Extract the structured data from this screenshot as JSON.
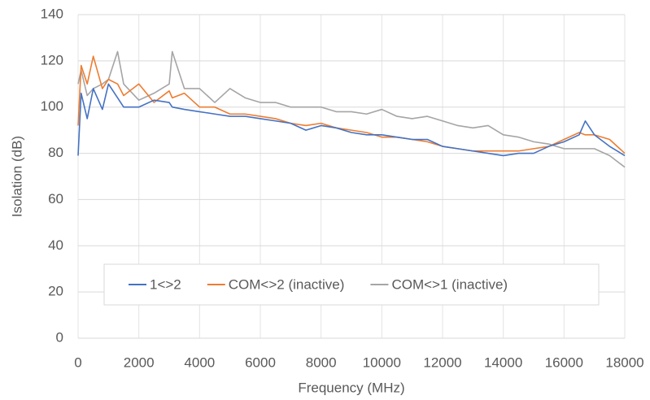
{
  "chart_data": {
    "type": "line",
    "xlabel": "Frequency (MHz)",
    "ylabel": "Isolation (dB)",
    "x": [
      0,
      100,
      300,
      500,
      800,
      1000,
      1300,
      1500,
      2000,
      2500,
      3000,
      3100,
      3500,
      4000,
      4500,
      5000,
      5500,
      6000,
      6500,
      7000,
      7500,
      8000,
      8500,
      9000,
      9500,
      10000,
      10500,
      11000,
      11500,
      12000,
      12500,
      13000,
      13500,
      14000,
      14500,
      15000,
      15500,
      16000,
      16500,
      16700,
      17000,
      17500,
      18000
    ],
    "series": [
      {
        "name": "1<>2",
        "color": "#4472c4",
        "values": [
          79,
          106,
          95,
          108,
          99,
          110,
          104,
          100,
          100,
          103,
          102,
          100,
          99,
          98,
          97,
          96,
          96,
          95,
          94,
          93,
          90,
          92,
          91,
          89,
          88,
          88,
          87,
          86,
          86,
          83,
          82,
          81,
          80,
          79,
          80,
          80,
          83,
          85,
          88,
          94,
          88,
          83,
          79
        ]
      },
      {
        "name": "COM<>2 (inactive)",
        "color": "#ed7d31",
        "values": [
          92,
          118,
          110,
          122,
          108,
          112,
          110,
          105,
          110,
          102,
          107,
          104,
          106,
          100,
          100,
          97,
          97,
          96,
          95,
          93,
          92,
          93,
          91,
          90,
          89,
          87,
          87,
          86,
          85,
          83,
          82,
          81,
          81,
          81,
          81,
          82,
          83,
          86,
          89,
          88,
          88,
          86,
          80
        ]
      },
      {
        "name": "COM<>1 (inactive)",
        "color": "#a5a5a5",
        "values": [
          110,
          116,
          105,
          108,
          110,
          112,
          124,
          110,
          103,
          106,
          110,
          124,
          108,
          108,
          102,
          108,
          104,
          102,
          102,
          100,
          100,
          100,
          98,
          98,
          97,
          99,
          96,
          95,
          96,
          94,
          92,
          91,
          92,
          88,
          87,
          85,
          84,
          82,
          82,
          82,
          82,
          79,
          74
        ]
      }
    ],
    "xlim": [
      0,
      18000
    ],
    "xticks": [
      0,
      2000,
      4000,
      6000,
      8000,
      10000,
      12000,
      14000,
      16000,
      18000
    ],
    "ylim": [
      0,
      140
    ],
    "yticks": [
      0,
      20,
      40,
      60,
      80,
      100,
      120,
      140
    ],
    "grid": true,
    "legend": "lower center"
  }
}
